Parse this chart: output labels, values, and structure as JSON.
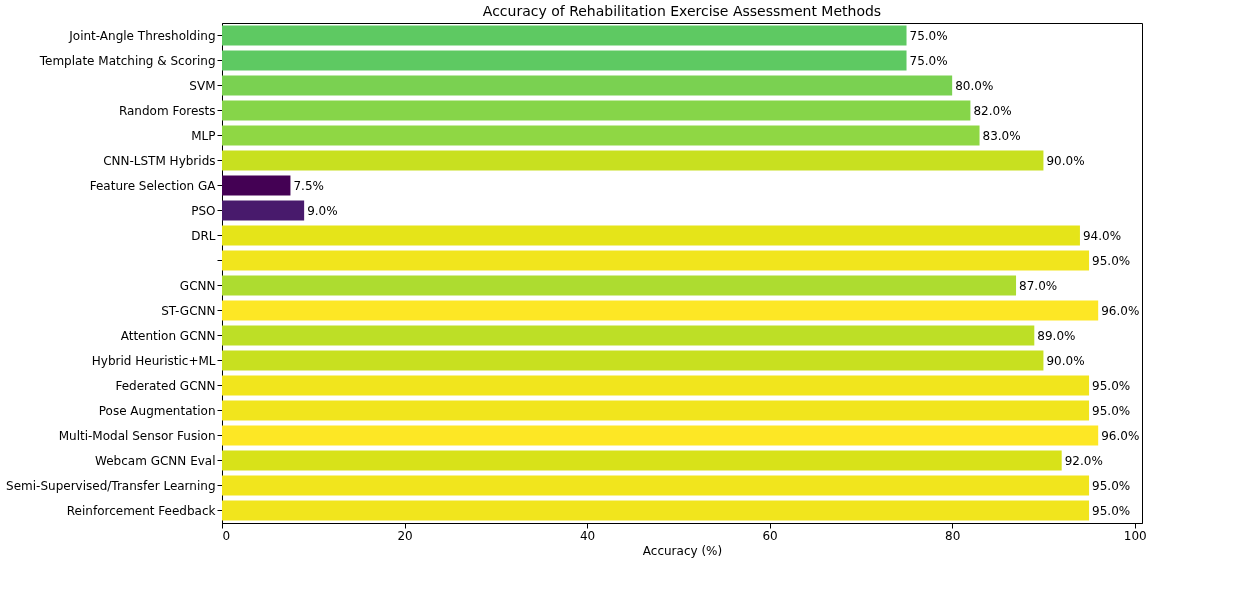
{
  "chart_data": {
    "type": "bar",
    "orientation": "horizontal",
    "title": "Accuracy of Rehabilitation Exercise Assessment Methods",
    "xlabel": "Accuracy (%)",
    "categories": [
      "Joint-Angle Thresholding",
      "Template Matching & Scoring",
      "SVM",
      "Random Forests",
      "MLP",
      "CNN-LSTM Hybrids",
      "Feature Selection GA",
      "PSO",
      "DRL",
      null,
      "GCNN",
      "ST-GCNN",
      "Attention GCNN",
      "Hybrid Heuristic+ML",
      "Federated GCNN",
      "Pose Augmentation",
      "Multi-Modal Sensor Fusion",
      "Webcam GCNN Eval",
      "Semi-Supervised/Transfer Learning",
      "Reinforcement Feedback"
    ],
    "values": [
      75,
      75,
      80,
      82,
      83,
      90,
      7.5,
      9,
      94,
      95,
      87,
      96,
      89,
      90,
      95,
      95,
      96,
      92,
      95,
      95
    ],
    "colors": [
      "#5ec962",
      "#5ec962",
      "#7ad151",
      "#86d549",
      "#8fd744",
      "#c8e020",
      "#440154",
      "#481a6c",
      "#e5e419",
      "#f1e51d",
      "#addc30",
      "#fde725",
      "#bddf26",
      "#c8e020",
      "#f1e51d",
      "#f1e51d",
      "#fde725",
      "#d8e219",
      "#f1e51d",
      "#f1e51d"
    ],
    "value_labels": [
      "75.0%",
      "75.0%",
      "80.0%",
      "82.0%",
      "83.0%",
      "90.0%",
      "7.5%",
      "9.0%",
      "94.0%",
      "95.0%",
      "87.0%",
      "96.0%",
      "89.0%",
      "90.0%",
      "95.0%",
      "95.0%",
      "96.0%",
      "92.0%",
      "95.0%",
      "95.0%"
    ],
    "xlim": [
      0,
      100.8
    ],
    "xticks": [
      0,
      20,
      40,
      60,
      80,
      100
    ],
    "grid": false
  }
}
